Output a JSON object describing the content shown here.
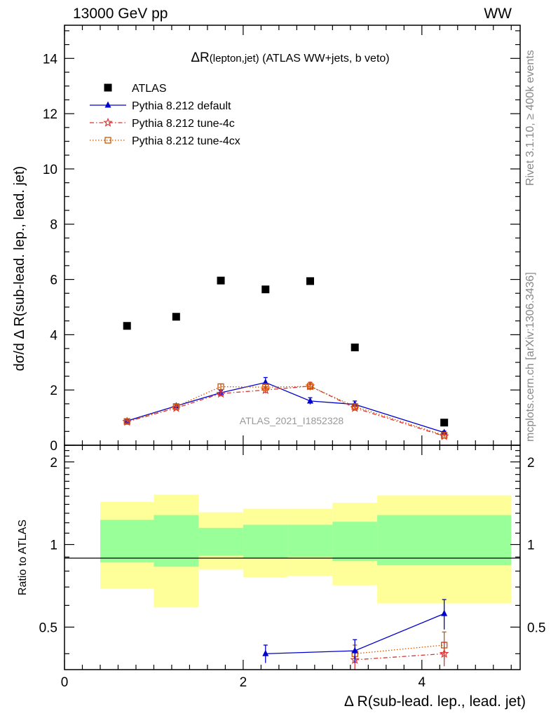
{
  "header": {
    "energy_label": "13000 GeV pp",
    "process_label": "WW",
    "rivet_label": "Rivet 3.1.10, ≥ 400k events",
    "mcplots_label": "mcplots.cern.ch [arXiv:1306.3436]"
  },
  "chart_data": [
    {
      "type": "scatter",
      "panel": "main",
      "title_main": "ΔR",
      "title_sub": "(lepton,jet)",
      "title_rest": " (ATLAS WW+jets, b veto)",
      "ylabel": "dσ/d Δ R(sub-lead. lep., lead. jet)",
      "xlim": [
        0,
        5.1
      ],
      "ylim": [
        0,
        15.2
      ],
      "yticks": [
        0,
        2,
        4,
        6,
        8,
        10,
        12,
        14
      ],
      "watermark": "ATLAS_2021_I1852328",
      "legend_position": "top-left",
      "series": [
        {
          "name": "ATLAS",
          "color": "#000000",
          "marker": "square",
          "x": [
            0.7,
            1.25,
            1.75,
            2.25,
            2.75,
            3.25,
            4.25
          ],
          "values": [
            4.32,
            4.65,
            5.96,
            5.64,
            5.94,
            3.54,
            0.82
          ]
        },
        {
          "name": "Pythia 8.212 default",
          "color": "#0000cc",
          "marker": "triangle",
          "line": "solid",
          "x": [
            0.7,
            1.25,
            1.75,
            2.25,
            2.75,
            3.25,
            4.25
          ],
          "values": [
            0.88,
            1.42,
            1.9,
            2.27,
            1.6,
            1.48,
            0.46
          ],
          "errors": [
            0.05,
            0.07,
            0.1,
            0.18,
            0.12,
            0.12,
            0.05
          ]
        },
        {
          "name": "Pythia 8.212 tune-4c",
          "color": "#dd3333",
          "marker": "star",
          "line": "dashdot",
          "x": [
            0.7,
            1.25,
            1.75,
            2.25,
            2.75,
            3.25,
            4.25
          ],
          "values": [
            0.85,
            1.35,
            1.87,
            2.0,
            2.14,
            1.35,
            0.33
          ],
          "errors": [
            0.05,
            0.07,
            0.1,
            0.12,
            0.14,
            0.1,
            0.04
          ]
        },
        {
          "name": "Pythia 8.212 tune-4cx",
          "color": "#cc5500",
          "marker": "open-square",
          "line": "dotted",
          "x": [
            0.7,
            1.25,
            1.75,
            2.25,
            2.75,
            3.25,
            4.25
          ],
          "values": [
            0.86,
            1.4,
            2.12,
            2.1,
            2.13,
            1.4,
            0.36
          ],
          "errors": [
            0.05,
            0.07,
            0.1,
            0.12,
            0.14,
            0.1,
            0.04
          ]
        }
      ]
    },
    {
      "type": "scatter",
      "panel": "ratio",
      "xlabel": "Δ R(sub-lead. lep., lead. jet)",
      "ylabel": "Ratio to ATLAS",
      "xlim": [
        0,
        5.1
      ],
      "ylim": [
        0.35,
        2.3
      ],
      "xticks": [
        0,
        2,
        4
      ],
      "yticks": [
        0.5,
        1,
        2
      ],
      "bands": [
        {
          "x0": 0.4,
          "x1": 1.0,
          "inner": [
            0.86,
            1.23
          ],
          "outer": [
            0.69,
            1.43
          ]
        },
        {
          "x0": 1.0,
          "x1": 1.5,
          "inner": [
            0.83,
            1.28
          ],
          "outer": [
            0.59,
            1.52
          ]
        },
        {
          "x0": 1.5,
          "x1": 2.0,
          "inner": [
            0.91,
            1.15
          ],
          "outer": [
            0.81,
            1.31
          ]
        },
        {
          "x0": 2.0,
          "x1": 2.5,
          "inner": [
            0.89,
            1.18
          ],
          "outer": [
            0.76,
            1.35
          ]
        },
        {
          "x0": 2.5,
          "x1": 3.0,
          "inner": [
            0.9,
            1.18
          ],
          "outer": [
            0.77,
            1.35
          ]
        },
        {
          "x0": 3.0,
          "x1": 3.5,
          "inner": [
            0.87,
            1.21
          ],
          "outer": [
            0.71,
            1.42
          ]
        },
        {
          "x0": 3.5,
          "x1": 5.0,
          "inner": [
            0.84,
            1.28
          ],
          "outer": [
            0.61,
            1.51
          ]
        }
      ],
      "series": [
        {
          "name": "Pythia 8.212 default",
          "color": "#0000cc",
          "marker": "triangle",
          "line": "solid",
          "x": [
            2.25,
            3.25,
            4.25
          ],
          "values": [
            0.4,
            0.41,
            0.56
          ],
          "errors": [
            0.03,
            0.04,
            0.07
          ]
        },
        {
          "name": "Pythia 8.212 tune-4c",
          "color": "#dd3333",
          "marker": "star",
          "line": "dashdot",
          "x": [
            3.25,
            4.25
          ],
          "values": [
            0.38,
            0.4
          ],
          "errors": [
            0.03,
            0.04
          ]
        },
        {
          "name": "Pythia 8.212 tune-4cx",
          "color": "#cc5500",
          "marker": "open-square",
          "line": "dotted",
          "x": [
            3.25,
            4.25
          ],
          "values": [
            0.4,
            0.43
          ],
          "errors": [
            0.03,
            0.05
          ]
        }
      ]
    }
  ]
}
